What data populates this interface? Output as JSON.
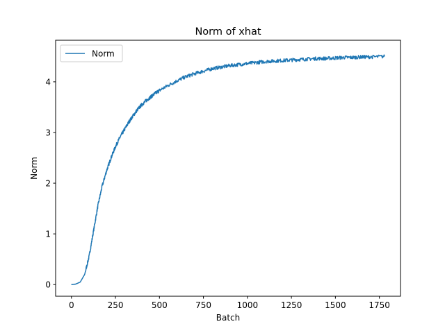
{
  "chart_data": {
    "type": "line",
    "title": "Norm of xhat",
    "xlabel": "Batch",
    "ylabel": "Norm",
    "xlim": [
      -90,
      1870
    ],
    "ylim": [
      -0.23,
      4.82
    ],
    "xticks": [
      0,
      250,
      500,
      750,
      1000,
      1250,
      1500,
      1750
    ],
    "yticks": [
      0,
      1,
      2,
      3,
      4
    ],
    "grid": false,
    "legend_position": "top-left",
    "series": [
      {
        "name": "Norm",
        "color": "#1f77b4",
        "x": [
          0,
          25,
          50,
          75,
          100,
          125,
          150,
          175,
          200,
          225,
          250,
          275,
          300,
          325,
          350,
          375,
          400,
          425,
          450,
          475,
          500,
          550,
          600,
          650,
          700,
          750,
          800,
          850,
          900,
          950,
          1000,
          1050,
          1100,
          1150,
          1200,
          1250,
          1300,
          1350,
          1400,
          1450,
          1500,
          1550,
          1600,
          1650,
          1700,
          1780
        ],
        "values": [
          0.0,
          0.01,
          0.05,
          0.2,
          0.55,
          1.05,
          1.55,
          1.95,
          2.25,
          2.5,
          2.72,
          2.9,
          3.05,
          3.2,
          3.33,
          3.45,
          3.55,
          3.63,
          3.7,
          3.77,
          3.83,
          3.93,
          4.02,
          4.1,
          4.16,
          4.21,
          4.26,
          4.29,
          4.32,
          4.34,
          4.36,
          4.38,
          4.4,
          4.41,
          4.42,
          4.43,
          4.44,
          4.45,
          4.46,
          4.46,
          4.47,
          4.48,
          4.48,
          4.49,
          4.49,
          4.5
        ]
      }
    ]
  }
}
